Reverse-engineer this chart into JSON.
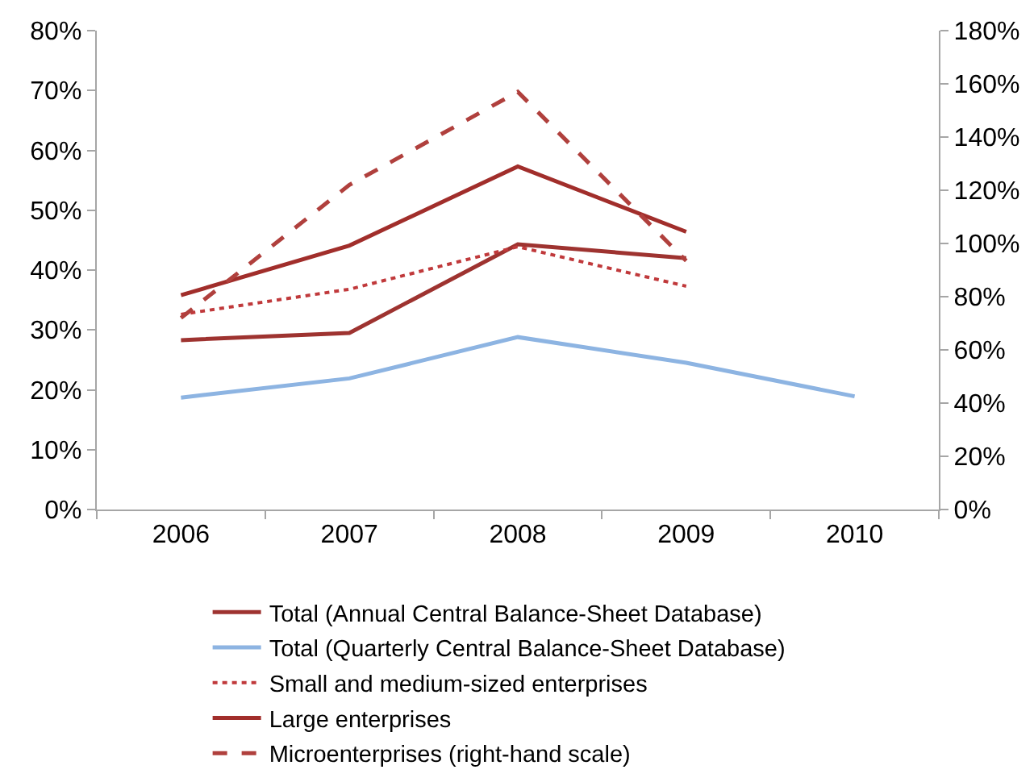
{
  "chart_data": {
    "type": "line",
    "categories": [
      "2006",
      "2007",
      "2008",
      "2009",
      "2010"
    ],
    "series": [
      {
        "name": "Total (Annual Central Balance-Sheet Database)",
        "color": "#9e3330",
        "line_style": "solid",
        "values": [
          28.3,
          29.5,
          44.3,
          42,
          null
        ]
      },
      {
        "name": "Total (Quarterly Central Balance-Sheet Database)",
        "color": "#8db4e2",
        "line_style": "solid",
        "values": [
          18.7,
          21.9,
          28.8,
          24.5,
          18.9
        ]
      },
      {
        "name": "Small and medium-sized enterprises",
        "color": "#c0393b",
        "line_style": "dotted",
        "values": [
          32.6,
          36.8,
          43.9,
          37.3,
          null
        ]
      },
      {
        "name": "Large enterprises",
        "color": "#a12e2b",
        "line_style": "solid",
        "values": [
          35.8,
          44.1,
          57.3,
          46.4,
          null
        ]
      },
      {
        "name": "Microenterprises (right-hand scale)",
        "color": "#b0403d",
        "line_style": "dashed",
        "axis": "y2",
        "values": [
          72,
          122,
          157,
          93.5,
          null
        ]
      }
    ],
    "ylim": [
      0,
      80
    ],
    "yticks": [
      {
        "value": 0,
        "label": "0%"
      },
      {
        "value": 10,
        "label": "10%"
      },
      {
        "value": 20,
        "label": "20%"
      },
      {
        "value": 30,
        "label": "30%"
      },
      {
        "value": 40,
        "label": "40%"
      },
      {
        "value": 50,
        "label": "50%"
      },
      {
        "value": 60,
        "label": "60%"
      },
      {
        "value": 70,
        "label": "70%"
      },
      {
        "value": 80,
        "label": "80%"
      }
    ],
    "y2lim": [
      0,
      180
    ],
    "y2ticks": [
      {
        "value": 0,
        "label": "0%"
      },
      {
        "value": 20,
        "label": "20%"
      },
      {
        "value": 40,
        "label": "40%"
      },
      {
        "value": 60,
        "label": "60%"
      },
      {
        "value": 80,
        "label": "80%"
      },
      {
        "value": 100,
        "label": "100%"
      },
      {
        "value": 120,
        "label": "120%"
      },
      {
        "value": 140,
        "label": "140%"
      },
      {
        "value": 160,
        "label": "160%"
      },
      {
        "value": 180,
        "label": "180%"
      }
    ],
    "legend": "bottom",
    "marker": "none",
    "grid": false
  }
}
